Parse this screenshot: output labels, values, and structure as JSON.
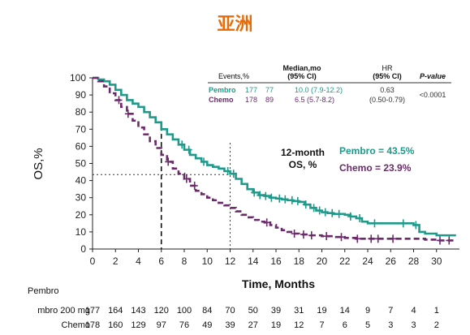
{
  "page": {
    "title": "亚洲"
  },
  "chart_data": {
    "type": "line",
    "subtype": "kaplan-meier",
    "xlabel": "Time, Months",
    "ylabel": "OS,%",
    "xlim": [
      0,
      32
    ],
    "ylim": [
      0,
      100
    ],
    "x_ticks": [
      0,
      2,
      4,
      6,
      8,
      10,
      12,
      14,
      16,
      18,
      20,
      22,
      24,
      26,
      28,
      30
    ],
    "y_ticks": [
      0,
      10,
      20,
      30,
      40,
      50,
      60,
      70,
      80,
      90,
      100
    ],
    "series": [
      {
        "name": "Pembro",
        "color": "#1f9a8a",
        "line_style": "solid",
        "points": [
          [
            0,
            100
          ],
          [
            0.5,
            99
          ],
          [
            1,
            98
          ],
          [
            1.5,
            96
          ],
          [
            2,
            93
          ],
          [
            2.5,
            90
          ],
          [
            3,
            87
          ],
          [
            3.5,
            85
          ],
          [
            4,
            83
          ],
          [
            4.5,
            80
          ],
          [
            5,
            77
          ],
          [
            5.5,
            74
          ],
          [
            6,
            70
          ],
          [
            6.5,
            67
          ],
          [
            7,
            64
          ],
          [
            7.5,
            61
          ],
          [
            8,
            58
          ],
          [
            8.5,
            55
          ],
          [
            9,
            53
          ],
          [
            9.5,
            51
          ],
          [
            10,
            49
          ],
          [
            10.5,
            48
          ],
          [
            11,
            47
          ],
          [
            11.5,
            45.5
          ],
          [
            12,
            44
          ],
          [
            12.5,
            41
          ],
          [
            13,
            38
          ],
          [
            13.5,
            35
          ],
          [
            14,
            33
          ],
          [
            14.5,
            31.5
          ],
          [
            15,
            31
          ],
          [
            15.5,
            30
          ],
          [
            16,
            29.5
          ],
          [
            16.5,
            29
          ],
          [
            17,
            28.5
          ],
          [
            17.5,
            28
          ],
          [
            18,
            27.5
          ],
          [
            18.5,
            26
          ],
          [
            19,
            24
          ],
          [
            19.5,
            22.5
          ],
          [
            20,
            21.5
          ],
          [
            20.5,
            21
          ],
          [
            21,
            20.5
          ],
          [
            22,
            20
          ],
          [
            22.5,
            19
          ],
          [
            23,
            18
          ],
          [
            23.5,
            16
          ],
          [
            24,
            15
          ],
          [
            25,
            15
          ],
          [
            26,
            15
          ],
          [
            27,
            15
          ],
          [
            28,
            14
          ],
          [
            28.5,
            10
          ],
          [
            29,
            9
          ],
          [
            30,
            8
          ],
          [
            31,
            8
          ]
        ],
        "censor_x": [
          7.8,
          8.4,
          9.7,
          11.8,
          12.3,
          14.1,
          14.6,
          15.1,
          15.6,
          16.3,
          16.8,
          17.4,
          17.9,
          18.6,
          19.3,
          19.8,
          20.3,
          20.9,
          21.5,
          22.5,
          23.3,
          24.6,
          27.1,
          28.2
        ]
      },
      {
        "name": "Chemo",
        "color": "#6b2a6a",
        "line_style": "dashed",
        "points": [
          [
            0,
            100
          ],
          [
            0.5,
            98
          ],
          [
            1,
            95
          ],
          [
            1.5,
            91
          ],
          [
            2,
            87
          ],
          [
            2.5,
            83
          ],
          [
            3,
            79
          ],
          [
            3.5,
            75
          ],
          [
            4,
            71
          ],
          [
            4.5,
            67
          ],
          [
            5,
            63
          ],
          [
            5.5,
            59
          ],
          [
            6,
            55
          ],
          [
            6.5,
            51
          ],
          [
            7,
            47
          ],
          [
            7.5,
            44
          ],
          [
            8,
            41
          ],
          [
            8.5,
            37
          ],
          [
            9,
            34
          ],
          [
            9.5,
            32
          ],
          [
            10,
            30
          ],
          [
            10.5,
            28.5
          ],
          [
            11,
            27
          ],
          [
            11.5,
            25.5
          ],
          [
            12,
            24
          ],
          [
            12.5,
            22
          ],
          [
            13,
            20
          ],
          [
            13.5,
            18.5
          ],
          [
            14,
            17
          ],
          [
            14.5,
            16
          ],
          [
            15,
            15.5
          ],
          [
            15.5,
            14
          ],
          [
            16,
            12.5
          ],
          [
            16.5,
            11
          ],
          [
            17,
            10
          ],
          [
            17.5,
            9
          ],
          [
            18,
            8.5
          ],
          [
            19,
            8
          ],
          [
            20,
            7.5
          ],
          [
            21,
            7
          ],
          [
            22,
            6.5
          ],
          [
            23,
            6
          ],
          [
            24,
            6
          ],
          [
            25,
            6
          ],
          [
            26,
            6
          ],
          [
            27,
            6
          ],
          [
            28,
            6
          ],
          [
            29,
            5.5
          ],
          [
            30,
            5
          ],
          [
            31,
            5
          ]
        ],
        "censor_x": [
          2.3,
          3.1,
          6.6,
          8.2,
          8.9,
          15.2,
          17.6,
          18.4,
          19.1,
          20.4,
          21.7,
          23.1,
          24.3,
          24.9,
          26.2,
          30.3,
          31.1
        ]
      }
    ],
    "reference_lines": {
      "x": [
        6,
        12
      ],
      "y": 43.5
    },
    "legend": "top-right",
    "legend_table": {
      "headers": {
        "events": "Events,%",
        "median": "Median,mo",
        "median_ci": "(95% CI)",
        "hr": "HR",
        "hr_ci": "(95% CI)",
        "p": "P-value"
      },
      "rows": [
        {
          "arm": "Pembro",
          "n": "177",
          "events": "77",
          "median": "10.0 (7.9-12.2)",
          "hr": "0.63",
          "hr_ci": "(0.50-0.79)",
          "p": "<0.0001"
        },
        {
          "arm": "Chemo",
          "n": "178",
          "events": "89",
          "median": "6.5 (5.7-8.2)"
        }
      ]
    },
    "annotation": {
      "label_line1": "12-month",
      "label_line2": "OS, %",
      "pembro": "Pembro = 43.5%",
      "chemo": "Chemo = 23.9%"
    },
    "risk_table": {
      "title": "Pembro",
      "times": [
        0,
        2,
        4,
        6,
        8,
        10,
        12,
        14,
        16,
        18,
        20,
        22,
        24,
        26,
        28,
        30
      ],
      "rows": [
        {
          "label": "mbro 200 mg",
          "values": [
            "177",
            "164",
            "143",
            "120",
            "100",
            "84",
            "70",
            "50",
            "39",
            "31",
            "19",
            "14",
            "9",
            "7",
            "4",
            "1"
          ]
        },
        {
          "label": "Chemo",
          "values": [
            "178",
            "160",
            "129",
            "97",
            "76",
            "49",
            "39",
            "27",
            "19",
            "12",
            "7",
            "6",
            "5",
            "3",
            "3",
            "2"
          ]
        }
      ]
    }
  }
}
